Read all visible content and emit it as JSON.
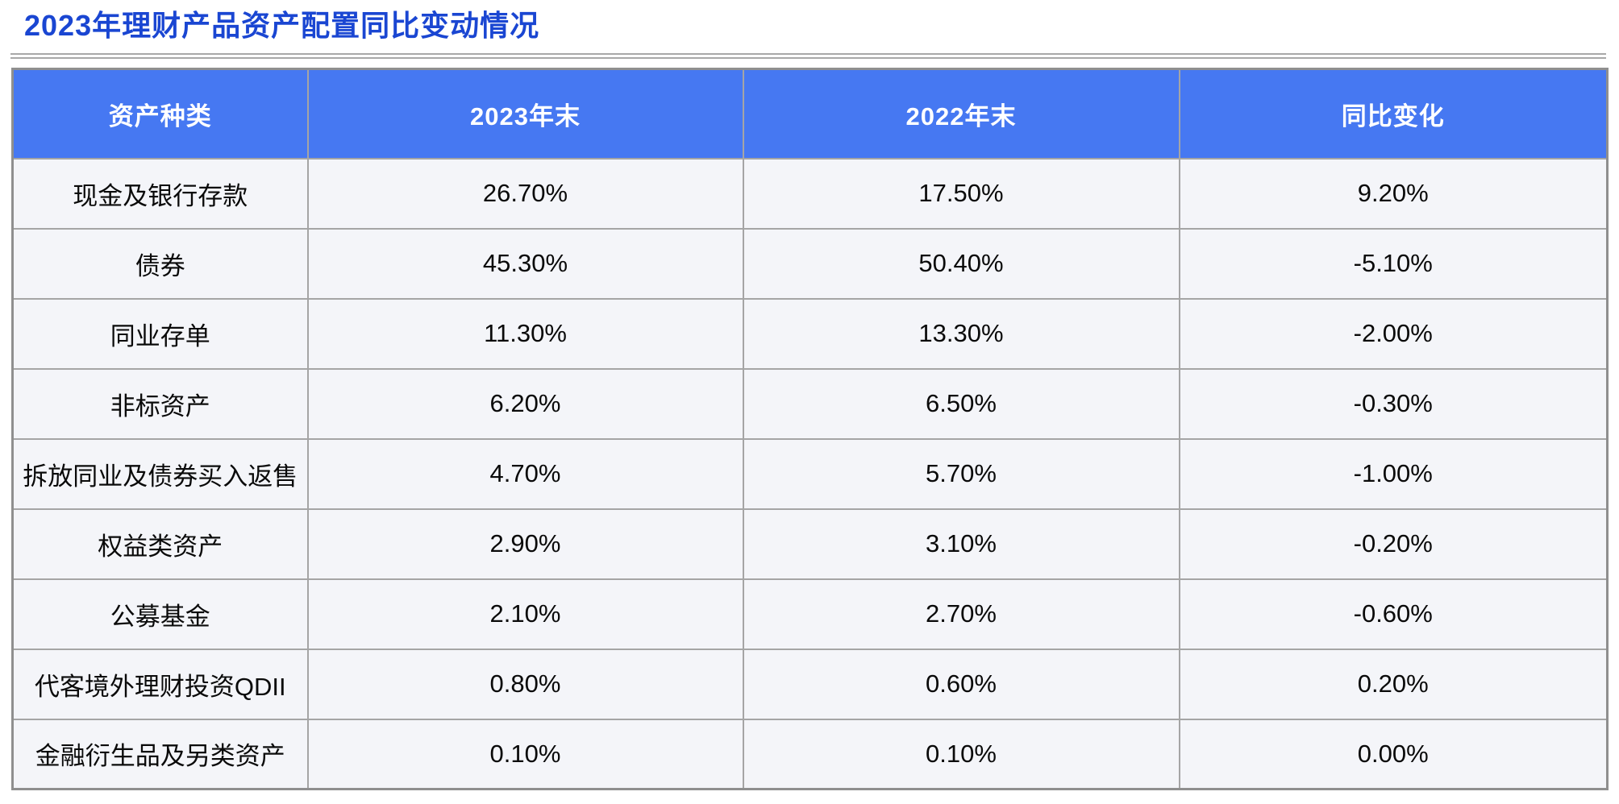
{
  "page": {
    "title": "2023年理财产品资产配置同比变动情况"
  },
  "table": {
    "columns": [
      "资产种类",
      "2023年末",
      "2022年末",
      "同比变化"
    ],
    "rows": [
      {
        "asset": "现金及银行存款",
        "end_2023": "26.70%",
        "end_2022": "17.50%",
        "yoy_change": "9.20%"
      },
      {
        "asset": "债券",
        "end_2023": "45.30%",
        "end_2022": "50.40%",
        "yoy_change": "-5.10%"
      },
      {
        "asset": "同业存单",
        "end_2023": "11.30%",
        "end_2022": "13.30%",
        "yoy_change": "-2.00%"
      },
      {
        "asset": "非标资产",
        "end_2023": "6.20%",
        "end_2022": "6.50%",
        "yoy_change": "-0.30%"
      },
      {
        "asset": "拆放同业及债券买入返售",
        "end_2023": "4.70%",
        "end_2022": "5.70%",
        "yoy_change": "-1.00%"
      },
      {
        "asset": "权益类资产",
        "end_2023": "2.90%",
        "end_2022": "3.10%",
        "yoy_change": "-0.20%"
      },
      {
        "asset": "公募基金",
        "end_2023": "2.10%",
        "end_2022": "2.70%",
        "yoy_change": "-0.60%"
      },
      {
        "asset": "代客境外理财投资QDII",
        "end_2023": "0.80%",
        "end_2022": "0.60%",
        "yoy_change": "0.20%"
      },
      {
        "asset": "金融衍生品及另类资产",
        "end_2023": "0.10%",
        "end_2022": "0.10%",
        "yoy_change": "0.00%"
      }
    ]
  },
  "colors": {
    "title_text": "#1a46d2",
    "header_bg": "#4678f2",
    "header_text": "#ffffff",
    "cell_bg": "#f4f5f9",
    "cell_text": "#0a0a0a",
    "grid_border": "#a5a5a5",
    "outer_border": "#8f8f8f",
    "rule": "#a8a8a8"
  },
  "chart_data": {
    "type": "table",
    "title": "2023年理财产品资产配置同比变动情况",
    "columns": [
      "资产种类",
      "2023年末",
      "2022年末",
      "同比变化"
    ],
    "rows": [
      [
        "现金及银行存款",
        "26.70%",
        "17.50%",
        "9.20%"
      ],
      [
        "债券",
        "45.30%",
        "50.40%",
        "-5.10%"
      ],
      [
        "同业存单",
        "11.30%",
        "13.30%",
        "-2.00%"
      ],
      [
        "非标资产",
        "6.20%",
        "6.50%",
        "-0.30%"
      ],
      [
        "拆放同业及债券买入返售",
        "4.70%",
        "5.70%",
        "-1.00%"
      ],
      [
        "权益类资产",
        "2.90%",
        "3.10%",
        "-0.20%"
      ],
      [
        "公募基金",
        "2.10%",
        "2.70%",
        "-0.60%"
      ],
      [
        "代客境外理财投资QDII",
        "0.80%",
        "0.60%",
        "0.20%"
      ],
      [
        "金融衍生品及另类资产",
        "0.10%",
        "0.10%",
        "0.00%"
      ]
    ],
    "units": "percent",
    "notes_layout": "header row blue with white bold text; body cells light gray, centered; full grid borders"
  }
}
